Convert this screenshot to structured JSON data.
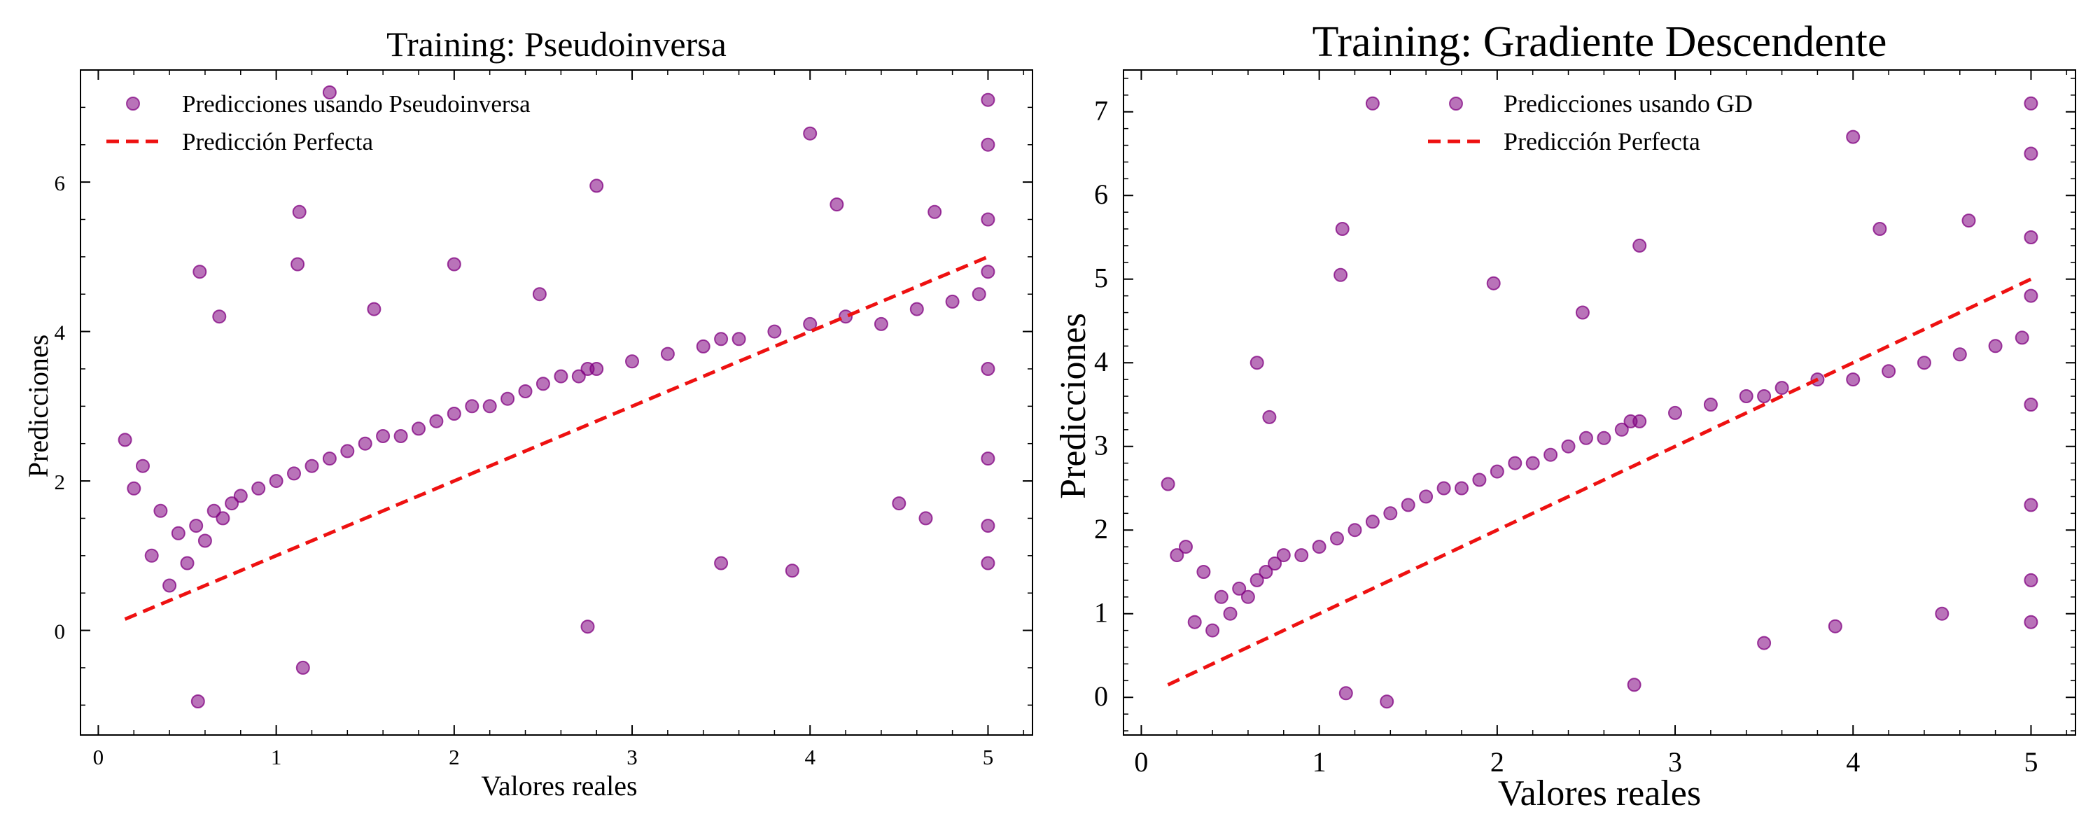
{
  "colors": {
    "marker": "#800080",
    "perfect_line": "#ee1111",
    "axes": "#000000",
    "background": "#ffffff"
  },
  "chart_data": [
    {
      "type": "scatter",
      "title": "Training: Pseudoinversa",
      "xlabel": "Valores reales",
      "ylabel": "Predicciones",
      "xlim": [
        -0.1,
        5.25
      ],
      "ylim": [
        -1.4,
        7.5
      ],
      "xticks": [
        0,
        1,
        2,
        3,
        4,
        5
      ],
      "yticks": [
        0,
        2,
        4,
        6
      ],
      "grid": false,
      "legend_position": "top-left",
      "series": [
        {
          "name": "Predicciones usando Pseudoinversa",
          "kind": "points",
          "marker_alpha": 0.55,
          "x": [
            0.15,
            0.2,
            0.25,
            0.3,
            0.35,
            0.4,
            0.45,
            0.5,
            0.55,
            0.6,
            0.65,
            0.7,
            0.75,
            0.8,
            0.9,
            1.0,
            1.1,
            1.13,
            1.2,
            1.3,
            1.4,
            1.5,
            1.6,
            1.7,
            1.8,
            1.9,
            2.0,
            2.1,
            2.2,
            2.3,
            2.4,
            2.5,
            2.6,
            2.7,
            2.75,
            2.8,
            3.0,
            3.2,
            3.4,
            3.5,
            3.6,
            3.8,
            4.0,
            4.2,
            4.4,
            4.6,
            4.8,
            4.95,
            5.0,
            5.0,
            5.0,
            5.0,
            5.0,
            5.0,
            5.0,
            5.0,
            0.57,
            0.68,
            1.12,
            1.3,
            2.0,
            2.48,
            2.8,
            4.0,
            4.15,
            4.7,
            0.56,
            1.15,
            1.55,
            2.75,
            3.5,
            3.9,
            4.5,
            4.65
          ],
          "y": [
            2.55,
            1.9,
            2.2,
            1.0,
            1.6,
            0.6,
            1.3,
            0.9,
            1.4,
            1.2,
            1.6,
            1.5,
            1.7,
            1.8,
            1.9,
            2.0,
            2.1,
            5.6,
            2.2,
            2.3,
            2.4,
            2.5,
            2.6,
            2.6,
            2.7,
            2.8,
            2.9,
            3.0,
            3.0,
            3.1,
            3.2,
            3.3,
            3.4,
            3.4,
            3.5,
            3.5,
            3.6,
            3.7,
            3.8,
            3.9,
            3.9,
            4.0,
            4.1,
            4.2,
            4.1,
            4.3,
            4.4,
            4.5,
            7.1,
            6.5,
            5.5,
            4.8,
            3.5,
            2.3,
            1.4,
            0.9,
            4.8,
            4.2,
            4.9,
            7.2,
            4.9,
            4.5,
            5.95,
            6.65,
            5.7,
            5.6,
            -0.95,
            -0.5,
            4.3,
            0.05,
            0.9,
            0.8,
            1.7,
            1.5
          ]
        },
        {
          "name": "Predicción Perfecta",
          "kind": "dashed-line",
          "x": [
            0.15,
            5.0
          ],
          "y": [
            0.15,
            5.0
          ]
        }
      ]
    },
    {
      "type": "scatter",
      "title": "Training: Gradiente Descendente",
      "xlabel": "Valores reales",
      "ylabel": "Predicciones",
      "xlim": [
        -0.1,
        5.25
      ],
      "ylim": [
        -0.45,
        7.5
      ],
      "xticks": [
        0,
        1,
        2,
        3,
        4,
        5
      ],
      "yticks": [
        0,
        1,
        2,
        3,
        4,
        5,
        6,
        7
      ],
      "grid": false,
      "legend_position": "top-center",
      "series": [
        {
          "name": "Predicciones usando GD",
          "kind": "points",
          "marker_alpha": 0.55,
          "x": [
            0.15,
            0.2,
            0.25,
            0.3,
            0.35,
            0.4,
            0.45,
            0.5,
            0.55,
            0.6,
            0.65,
            0.7,
            0.75,
            0.8,
            0.9,
            1.0,
            1.1,
            1.13,
            1.2,
            1.3,
            1.4,
            1.5,
            1.6,
            1.7,
            1.8,
            1.9,
            2.0,
            2.1,
            2.2,
            2.3,
            2.4,
            2.5,
            2.6,
            2.7,
            2.75,
            2.8,
            3.0,
            3.2,
            3.4,
            3.5,
            3.6,
            3.8,
            4.0,
            4.2,
            4.4,
            4.6,
            4.8,
            4.95,
            5.0,
            5.0,
            5.0,
            5.0,
            5.0,
            5.0,
            5.0,
            5.0,
            0.65,
            0.72,
            1.12,
            1.3,
            1.98,
            2.48,
            2.8,
            4.0,
            4.15,
            4.65,
            1.15,
            1.38,
            2.77,
            3.5,
            3.9,
            4.5
          ],
          "y": [
            2.55,
            1.7,
            1.8,
            0.9,
            1.5,
            0.8,
            1.2,
            1.0,
            1.3,
            1.2,
            1.4,
            1.5,
            1.6,
            1.7,
            1.7,
            1.8,
            1.9,
            5.6,
            2.0,
            2.1,
            2.2,
            2.3,
            2.4,
            2.5,
            2.5,
            2.6,
            2.7,
            2.8,
            2.8,
            2.9,
            3.0,
            3.1,
            3.1,
            3.2,
            3.3,
            3.3,
            3.4,
            3.5,
            3.6,
            3.6,
            3.7,
            3.8,
            3.8,
            3.9,
            4.0,
            4.1,
            4.2,
            4.3,
            7.1,
            6.5,
            5.5,
            4.8,
            3.5,
            2.3,
            1.4,
            0.9,
            4.0,
            3.35,
            5.05,
            7.1,
            4.95,
            4.6,
            5.4,
            6.7,
            5.6,
            5.7,
            0.05,
            -0.05,
            0.15,
            0.65,
            0.85,
            1.0
          ]
        },
        {
          "name": "Predicción Perfecta",
          "kind": "dashed-line",
          "x": [
            0.15,
            5.0
          ],
          "y": [
            0.15,
            5.0
          ]
        }
      ]
    }
  ]
}
